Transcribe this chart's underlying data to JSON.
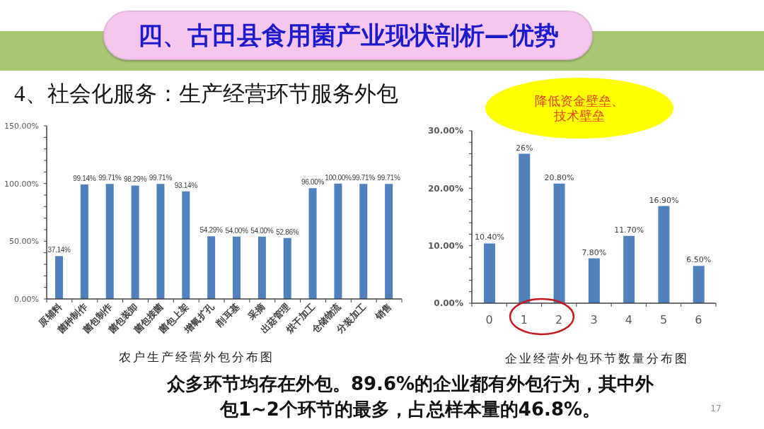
{
  "chart_data": [
    {
      "type": "other",
      "title": "四、古田县食用菌产业现状剖析—优势",
      "subtitle": "4、社会化服务：生产经营环节服务外包",
      "annotations": [
        "众多环节均存在外包。89.6%的企业都有外包行为，其中外包1~2个环节的最多，占总样本量的46.8%。",
        "17"
      ]
    },
    {
      "type": "bar",
      "title": "农户生产经营外包分布图",
      "categories": [
        "原辅料",
        "菌种制作",
        "菌包制作",
        "菌包装卸",
        "菌包接菌",
        "菌包上架",
        "增氧扩孔",
        "削耳基",
        "采摘",
        "出菇管理",
        "烘干加工",
        "仓储物流",
        "分装加工",
        "销售"
      ],
      "values": [
        37.14,
        99.14,
        99.71,
        98.29,
        99.71,
        93.14,
        54.29,
        54.0,
        54.0,
        52.86,
        96.0,
        100.0,
        99.71,
        99.71
      ],
      "color": "#4f81bd",
      "value_labels": [
        "37.14%",
        "99.14%",
        "99.71%",
        "98.29%",
        "99.71%",
        "93.14%",
        "54.29%",
        "54.00%",
        "54.00%",
        "52.86%",
        "96.00%",
        "100.00%",
        "99.71%",
        "99.71%"
      ],
      "ylim": [
        0,
        150
      ],
      "yticks": [
        {
          "value": 0,
          "label": "0.00%"
        },
        {
          "value": 10,
          "label": null
        },
        {
          "value": 20,
          "label": null
        },
        {
          "value": 30,
          "label": null
        },
        {
          "value": 40,
          "label": null
        },
        {
          "value": 50,
          "label": "50.00%"
        },
        {
          "value": 60,
          "label": null
        },
        {
          "value": 70,
          "label": null
        },
        {
          "value": 80,
          "label": null
        },
        {
          "value": 90,
          "label": null
        },
        {
          "value": 100,
          "label": "100.00%"
        },
        {
          "value": 110,
          "label": null
        },
        {
          "value": 120,
          "label": null
        },
        {
          "value": 130,
          "label": null
        },
        {
          "value": 140,
          "label": null
        },
        {
          "value": 150,
          "label": "150.00%"
        }
      ]
    },
    {
      "type": "bar",
      "title": "企业经营外包环节数量分布图",
      "categories": [
        "0",
        "1",
        "2",
        "3",
        "4",
        "5",
        "6"
      ],
      "values": [
        10.4,
        26,
        20.8,
        7.8,
        11.7,
        16.9,
        6.5
      ],
      "color": "#4f81bd",
      "value_labels": [
        "10.40%",
        "26%",
        "20.80%",
        "7.80%",
        "11.70%",
        "16.90%",
        "6.50%"
      ],
      "ylim": [
        0,
        30
      ],
      "yticks": [
        {
          "value": 0,
          "label": "0.00%"
        },
        {
          "value": 2,
          "label": null
        },
        {
          "value": 4,
          "label": null
        },
        {
          "value": 6,
          "label": null
        },
        {
          "value": 8,
          "label": null
        },
        {
          "value": 10,
          "label": "10.00%"
        },
        {
          "value": 12,
          "label": null
        },
        {
          "value": 14,
          "label": null
        },
        {
          "value": 16,
          "label": null
        },
        {
          "value": 18,
          "label": null
        },
        {
          "value": 20,
          "label": "20.00%"
        },
        {
          "value": 22,
          "label": null
        },
        {
          "value": 24,
          "label": null
        },
        {
          "value": 26,
          "label": null
        },
        {
          "value": 28,
          "label": null
        },
        {
          "value": 30,
          "label": "30.00%"
        }
      ],
      "annotations": [
        "降低资金壁垒、技术壁垒"
      ]
    }
  ]
}
